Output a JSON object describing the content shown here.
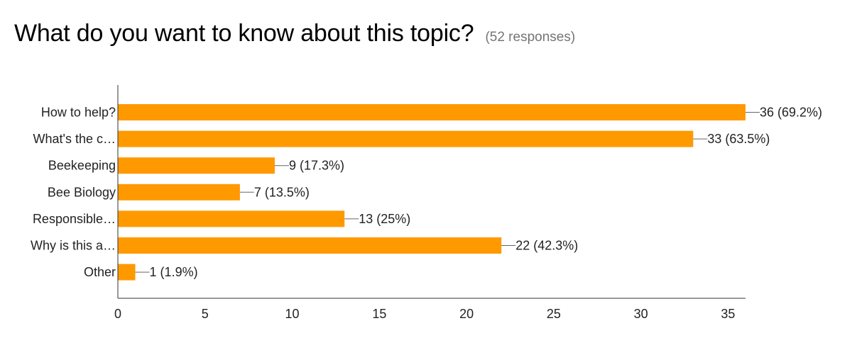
{
  "header": {
    "title": "What do you want to know about this topic?",
    "subtitle": "(52 responses)"
  },
  "chart_data": {
    "type": "bar",
    "orientation": "horizontal",
    "categories": [
      "How to help?",
      "What's the c…",
      "Beekeeping",
      "Bee Biology",
      "Responsible…",
      "Why is this a…",
      "Other"
    ],
    "values": [
      36,
      33,
      9,
      7,
      13,
      22,
      1
    ],
    "data_labels": [
      "36 (69.2%)",
      "33 (63.5%)",
      "9 (17.3%)",
      "7 (13.5%)",
      "13 (25%)",
      "22 (42.3%)",
      "1 (1.9%)"
    ],
    "xlim": [
      0,
      36
    ],
    "xticks": [
      0,
      5,
      10,
      15,
      20,
      25,
      30,
      35
    ],
    "grid": false,
    "legend": "none",
    "bar_color": "#ff9900"
  }
}
